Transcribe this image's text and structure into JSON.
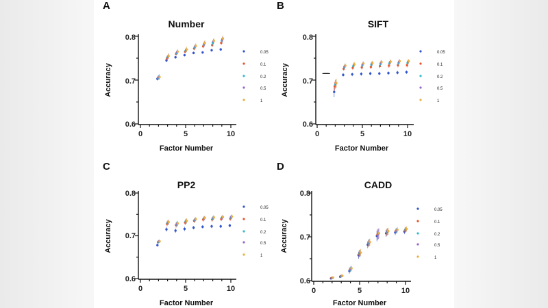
{
  "chart_data": [
    {
      "type": "scatter",
      "panel_label": "A",
      "title": "Number",
      "xlabel": "Factor Number",
      "ylabel": "Accuracy",
      "xlim": [
        0,
        11
      ],
      "ylim": [
        0.6,
        0.8
      ],
      "xticks": [
        "0",
        "5",
        "10"
      ],
      "yticks": [
        "0.6",
        "0.7",
        "0.8"
      ],
      "x": [
        2,
        3,
        4,
        5,
        6,
        7,
        8,
        9
      ],
      "series": [
        {
          "name": "0.05",
          "color": "#3355cc",
          "values": [
            0.703,
            0.745,
            0.752,
            0.757,
            0.762,
            0.763,
            0.768,
            0.77
          ],
          "err": [
            0.004,
            0.004,
            0.003,
            0.003,
            0.003,
            0.003,
            0.003,
            0.003
          ]
        },
        {
          "name": "0.1",
          "color": "#e8542e",
          "values": [
            0.705,
            0.75,
            0.76,
            0.765,
            0.772,
            0.777,
            0.78,
            0.785
          ],
          "err": [
            0.005,
            0.005,
            0.004,
            0.004,
            0.004,
            0.004,
            0.005,
            0.005
          ]
        },
        {
          "name": "0.2",
          "color": "#33bbcc",
          "values": [
            0.706,
            0.752,
            0.762,
            0.767,
            0.775,
            0.78,
            0.785,
            0.79
          ],
          "err": [
            0.005,
            0.005,
            0.005,
            0.005,
            0.005,
            0.005,
            0.006,
            0.006
          ]
        },
        {
          "name": "0.5",
          "color": "#9966cc",
          "values": [
            0.707,
            0.754,
            0.764,
            0.769,
            0.777,
            0.783,
            0.788,
            0.793
          ],
          "err": [
            0.006,
            0.006,
            0.005,
            0.005,
            0.005,
            0.006,
            0.006,
            0.006
          ]
        },
        {
          "name": "1",
          "color": "#e8b040",
          "values": [
            0.707,
            0.755,
            0.765,
            0.77,
            0.778,
            0.785,
            0.79,
            0.795
          ],
          "err": [
            0.006,
            0.006,
            0.006,
            0.006,
            0.006,
            0.006,
            0.006,
            0.007
          ]
        }
      ]
    },
    {
      "type": "scatter",
      "panel_label": "B",
      "title": "SIFT",
      "xlabel": "Factor Number",
      "ylabel": "Accuracy",
      "xlim": [
        0,
        11
      ],
      "ylim": [
        0.6,
        0.8
      ],
      "xticks": [
        "0",
        "5",
        "10"
      ],
      "yticks": [
        "0.6",
        "0.7",
        "0.8"
      ],
      "x": [
        1,
        2,
        3,
        4,
        5,
        6,
        7,
        8,
        9,
        10
      ],
      "series": [
        {
          "name": "0.05",
          "color": "#3355cc",
          "values": [
            0.715,
            0.673,
            0.712,
            0.713,
            0.714,
            0.715,
            0.715,
            0.716,
            0.717,
            0.718
          ],
          "err": [
            0.0,
            0.012,
            0.004,
            0.004,
            0.004,
            0.004,
            0.004,
            0.004,
            0.004,
            0.004
          ]
        },
        {
          "name": "0.1",
          "color": "#e8542e",
          "values": [
            0.715,
            0.686,
            0.726,
            0.728,
            0.729,
            0.73,
            0.732,
            0.733,
            0.734,
            0.734
          ],
          "err": [
            0.0,
            0.01,
            0.005,
            0.005,
            0.005,
            0.005,
            0.005,
            0.005,
            0.005,
            0.005
          ]
        },
        {
          "name": "0.2",
          "color": "#33bbcc",
          "values": [
            0.715,
            0.69,
            0.73,
            0.732,
            0.734,
            0.735,
            0.737,
            0.738,
            0.739,
            0.739
          ],
          "err": [
            0.0,
            0.01,
            0.005,
            0.005,
            0.005,
            0.005,
            0.005,
            0.005,
            0.005,
            0.005
          ]
        },
        {
          "name": "0.5",
          "color": "#9966cc",
          "values": [
            0.715,
            0.692,
            0.732,
            0.735,
            0.737,
            0.738,
            0.74,
            0.741,
            0.742,
            0.742
          ],
          "err": [
            0.0,
            0.01,
            0.005,
            0.005,
            0.005,
            0.005,
            0.005,
            0.005,
            0.005,
            0.005
          ]
        },
        {
          "name": "1",
          "color": "#e8b040",
          "values": [
            0.715,
            0.693,
            0.733,
            0.736,
            0.738,
            0.739,
            0.741,
            0.742,
            0.743,
            0.743
          ],
          "err": [
            0.0,
            0.01,
            0.005,
            0.005,
            0.005,
            0.005,
            0.005,
            0.005,
            0.005,
            0.005
          ]
        }
      ]
    },
    {
      "type": "scatter",
      "panel_label": "C",
      "title": "PP2",
      "xlabel": "Factor Number",
      "ylabel": "Accuracy",
      "xlim": [
        0,
        11
      ],
      "ylim": [
        0.6,
        0.8
      ],
      "xticks": [
        "0",
        "5",
        "10"
      ],
      "yticks": [
        "0.6",
        "0.7",
        "0.8"
      ],
      "x": [
        2,
        3,
        4,
        5,
        6,
        7,
        8,
        9,
        10
      ],
      "series": [
        {
          "name": "0.05",
          "color": "#3355cc",
          "values": [
            0.678,
            0.715,
            0.712,
            0.716,
            0.719,
            0.721,
            0.722,
            0.722,
            0.724
          ],
          "err": [
            0.003,
            0.005,
            0.005,
            0.005,
            0.004,
            0.004,
            0.004,
            0.004,
            0.004
          ]
        },
        {
          "name": "0.1",
          "color": "#e8542e",
          "values": [
            0.685,
            0.728,
            0.725,
            0.731,
            0.735,
            0.738,
            0.738,
            0.739,
            0.74
          ],
          "err": [
            0.004,
            0.006,
            0.006,
            0.006,
            0.005,
            0.005,
            0.005,
            0.005,
            0.005
          ]
        },
        {
          "name": "0.2",
          "color": "#33bbcc",
          "values": [
            0.686,
            0.73,
            0.727,
            0.733,
            0.737,
            0.74,
            0.741,
            0.742,
            0.743
          ],
          "err": [
            0.004,
            0.006,
            0.006,
            0.006,
            0.005,
            0.005,
            0.005,
            0.005,
            0.005
          ]
        },
        {
          "name": "0.5",
          "color": "#9966cc",
          "values": [
            0.687,
            0.731,
            0.728,
            0.734,
            0.738,
            0.741,
            0.742,
            0.743,
            0.744
          ],
          "err": [
            0.004,
            0.006,
            0.006,
            0.006,
            0.005,
            0.005,
            0.005,
            0.005,
            0.005
          ]
        },
        {
          "name": "1",
          "color": "#e8b040",
          "values": [
            0.687,
            0.732,
            0.729,
            0.735,
            0.739,
            0.742,
            0.743,
            0.744,
            0.745
          ],
          "err": [
            0.004,
            0.006,
            0.006,
            0.006,
            0.005,
            0.005,
            0.005,
            0.005,
            0.005
          ]
        }
      ]
    },
    {
      "type": "scatter",
      "panel_label": "D",
      "title": "CADD",
      "xlabel": "Factor Number",
      "ylabel": "Accuracy",
      "xlim": [
        0,
        11
      ],
      "ylim": [
        0.6,
        0.8
      ],
      "xticks": [
        "0",
        "5",
        "10"
      ],
      "yticks": [
        "0.6",
        "0.7",
        "0.8"
      ],
      "x": [
        2,
        3,
        4,
        5,
        6,
        7,
        8,
        9,
        10
      ],
      "series": [
        {
          "name": "0.05",
          "color": "#3355cc",
          "values": [
            0.605,
            0.609,
            0.622,
            0.658,
            0.682,
            0.702,
            0.708,
            0.71,
            0.712
          ],
          "err": [
            0.002,
            0.003,
            0.006,
            0.008,
            0.008,
            0.012,
            0.008,
            0.006,
            0.006
          ]
        },
        {
          "name": "0.1",
          "color": "#e8542e",
          "values": [
            0.606,
            0.61,
            0.625,
            0.661,
            0.685,
            0.705,
            0.71,
            0.713,
            0.715
          ],
          "err": [
            0.002,
            0.003,
            0.006,
            0.008,
            0.008,
            0.012,
            0.008,
            0.006,
            0.006
          ]
        },
        {
          "name": "0.2",
          "color": "#33bbcc",
          "values": [
            0.606,
            0.61,
            0.626,
            0.662,
            0.686,
            0.706,
            0.711,
            0.714,
            0.716
          ],
          "err": [
            0.002,
            0.003,
            0.006,
            0.008,
            0.008,
            0.012,
            0.008,
            0.006,
            0.006
          ]
        },
        {
          "name": "0.5",
          "color": "#9966cc",
          "values": [
            0.607,
            0.611,
            0.627,
            0.663,
            0.687,
            0.707,
            0.712,
            0.715,
            0.717
          ],
          "err": [
            0.002,
            0.003,
            0.006,
            0.008,
            0.008,
            0.012,
            0.008,
            0.006,
            0.006
          ]
        },
        {
          "name": "1",
          "color": "#e8b040",
          "values": [
            0.607,
            0.611,
            0.628,
            0.664,
            0.688,
            0.708,
            0.713,
            0.716,
            0.718
          ],
          "err": [
            0.002,
            0.003,
            0.006,
            0.008,
            0.008,
            0.012,
            0.008,
            0.006,
            0.006
          ]
        }
      ]
    }
  ]
}
